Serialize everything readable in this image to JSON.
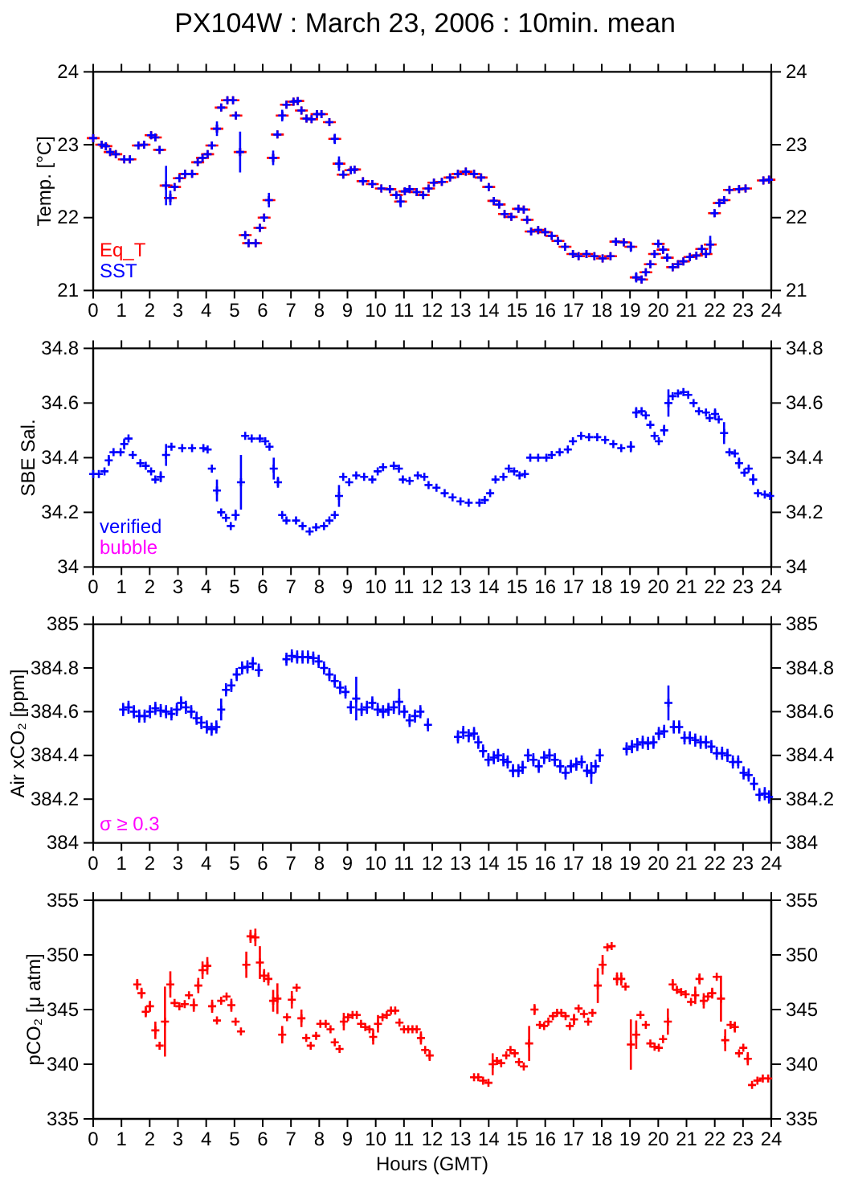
{
  "chart_data": [
    {
      "type": "scatter",
      "title": "PX104W : March 23, 2006 : 10min. mean",
      "ylabel": "Temp. [°C]",
      "marker": "cross",
      "legend": "bottom left",
      "xlim": [
        0,
        24
      ],
      "xticks": [
        0,
        1,
        2,
        3,
        4,
        5,
        6,
        7,
        8,
        9,
        10,
        11,
        12,
        13,
        14,
        15,
        16,
        17,
        18,
        19,
        20,
        21,
        22,
        23,
        24
      ],
      "ylim": [
        21,
        24
      ],
      "yticks": [
        21,
        22,
        23,
        24
      ],
      "y2lim": [
        21,
        24
      ],
      "y2ticks": [
        21,
        22,
        23,
        24
      ],
      "series": [
        {
          "name": "Eq_T",
          "color": "#ff0000",
          "x": [
            0,
            0.3,
            0.45,
            0.6,
            0.8,
            1.1,
            1.3,
            1.6,
            1.8,
            2.05,
            2.2,
            2.35,
            2.58,
            2.73,
            2.88,
            3.05,
            3.25,
            3.5,
            3.7,
            3.87,
            4.05,
            4.2,
            4.38,
            4.53,
            4.75,
            4.95,
            5.05,
            5.2,
            5.38,
            5.5,
            5.75,
            5.9,
            6.05,
            6.22,
            6.37,
            6.52,
            6.69,
            6.84,
            7.09,
            7.24,
            7.37,
            7.55,
            7.73,
            7.92,
            8.08,
            8.36,
            8.55,
            8.7,
            8.85,
            9.12,
            9.25,
            9.55,
            9.88,
            10.2,
            10.5,
            10.73,
            10.88,
            11.03,
            11.2,
            11.45,
            11.68,
            11.87,
            12.06,
            12.34,
            12.63,
            12.91,
            13.19,
            13.48,
            13.73,
            14.0,
            14.18,
            14.37,
            14.56,
            14.8,
            15.05,
            15.24,
            15.36,
            15.5,
            15.75,
            16.0,
            16.23,
            16.45,
            16.7,
            16.98,
            17.18,
            17.46,
            17.74,
            18.03,
            18.31,
            18.5,
            18.78,
            19.03,
            19.22,
            19.41,
            19.56,
            19.72,
            19.87,
            20.0,
            20.17,
            20.32,
            20.51,
            20.7,
            20.89,
            21.12,
            21.35,
            21.54,
            21.69,
            21.84,
            21.99,
            22.16,
            22.33,
            22.52,
            22.86,
            23.09,
            23.72,
            23.92
          ],
          "values": [
            23.09,
            23.0,
            22.98,
            22.9,
            22.87,
            22.8,
            22.8,
            22.99,
            23.0,
            23.13,
            23.1,
            22.93,
            22.44,
            22.27,
            22.42,
            22.54,
            22.6,
            22.6,
            22.76,
            22.82,
            22.87,
            22.99,
            23.22,
            23.51,
            23.61,
            23.61,
            23.4,
            22.9,
            21.76,
            21.65,
            21.65,
            21.86,
            22.0,
            22.24,
            22.82,
            23.14,
            23.4,
            23.55,
            23.59,
            23.6,
            23.47,
            23.36,
            23.35,
            23.42,
            23.42,
            23.31,
            23.08,
            22.74,
            22.59,
            22.65,
            22.66,
            22.5,
            22.46,
            22.4,
            22.39,
            22.31,
            22.22,
            22.36,
            22.39,
            22.35,
            22.31,
            22.4,
            22.48,
            22.49,
            22.55,
            22.6,
            22.63,
            22.6,
            22.55,
            22.42,
            22.23,
            22.18,
            22.05,
            22.01,
            22.12,
            22.11,
            21.97,
            21.81,
            21.83,
            21.8,
            21.75,
            21.68,
            21.6,
            21.5,
            21.47,
            21.5,
            21.47,
            21.44,
            21.47,
            21.67,
            21.66,
            21.6,
            21.18,
            21.15,
            21.25,
            21.36,
            21.5,
            21.64,
            21.56,
            21.45,
            21.32,
            21.36,
            21.4,
            21.46,
            21.48,
            21.57,
            21.5,
            21.63,
            22.06,
            22.2,
            22.24,
            22.38,
            22.39,
            22.4,
            22.51,
            22.52
          ]
        },
        {
          "name": "SST",
          "color": "#0000ff",
          "x": [
            0,
            0.3,
            0.45,
            0.6,
            0.8,
            1.1,
            1.3,
            1.6,
            1.8,
            2.05,
            2.2,
            2.35,
            2.58,
            2.73,
            2.88,
            3.05,
            3.25,
            3.5,
            3.7,
            3.87,
            4.05,
            4.2,
            4.38,
            4.53,
            4.75,
            4.95,
            5.05,
            5.2,
            5.38,
            5.5,
            5.75,
            5.9,
            6.05,
            6.22,
            6.37,
            6.52,
            6.69,
            6.84,
            7.09,
            7.24,
            7.37,
            7.55,
            7.73,
            7.92,
            8.08,
            8.36,
            8.55,
            8.7,
            8.85,
            9.12,
            9.25,
            9.55,
            9.88,
            10.2,
            10.5,
            10.73,
            10.88,
            11.03,
            11.2,
            11.45,
            11.68,
            11.87,
            12.06,
            12.34,
            12.63,
            12.91,
            13.19,
            13.48,
            13.73,
            14.0,
            14.18,
            14.37,
            14.56,
            14.8,
            15.05,
            15.24,
            15.36,
            15.5,
            15.75,
            16.0,
            16.23,
            16.45,
            16.7,
            16.98,
            17.18,
            17.46,
            17.74,
            18.03,
            18.31,
            18.5,
            18.78,
            19.03,
            19.22,
            19.41,
            19.56,
            19.72,
            19.87,
            20.0,
            20.17,
            20.32,
            20.51,
            20.7,
            20.89,
            21.12,
            21.35,
            21.54,
            21.69,
            21.84,
            21.99,
            22.16,
            22.33,
            22.52,
            22.86,
            23.09,
            23.72,
            23.92
          ],
          "values": [
            23.09,
            23.0,
            22.98,
            22.9,
            22.87,
            22.8,
            22.8,
            22.99,
            23.0,
            23.13,
            23.1,
            22.93,
            22.44,
            22.27,
            22.42,
            22.54,
            22.6,
            22.6,
            22.76,
            22.82,
            22.87,
            22.99,
            23.22,
            23.51,
            23.61,
            23.61,
            23.4,
            22.9,
            21.76,
            21.65,
            21.65,
            21.86,
            22.0,
            22.24,
            22.82,
            23.14,
            23.4,
            23.55,
            23.59,
            23.6,
            23.47,
            23.36,
            23.35,
            23.42,
            23.42,
            23.31,
            23.08,
            22.74,
            22.59,
            22.65,
            22.66,
            22.5,
            22.46,
            22.4,
            22.39,
            22.31,
            22.22,
            22.36,
            22.39,
            22.35,
            22.31,
            22.4,
            22.48,
            22.49,
            22.55,
            22.6,
            22.63,
            22.6,
            22.55,
            22.42,
            22.23,
            22.18,
            22.05,
            22.01,
            22.12,
            22.11,
            21.97,
            21.81,
            21.83,
            21.8,
            21.75,
            21.68,
            21.6,
            21.5,
            21.47,
            21.5,
            21.47,
            21.44,
            21.47,
            21.67,
            21.66,
            21.6,
            21.18,
            21.15,
            21.25,
            21.36,
            21.5,
            21.64,
            21.56,
            21.45,
            21.32,
            21.36,
            21.4,
            21.46,
            21.48,
            21.57,
            21.5,
            21.63,
            22.06,
            22.2,
            22.24,
            22.38,
            22.39,
            22.4,
            22.51,
            22.52
          ],
          "errors": [
            null,
            null,
            null,
            null,
            null,
            null,
            null,
            null,
            null,
            null,
            null,
            null,
            0.27,
            0.1,
            null,
            null,
            null,
            null,
            null,
            null,
            null,
            null,
            0.1,
            null,
            null,
            null,
            null,
            0.28,
            null,
            null,
            null,
            null,
            null,
            0.1,
            0.1,
            null,
            0.08,
            null,
            null,
            null,
            null,
            null,
            null,
            null,
            null,
            null,
            0.07,
            0.1,
            null,
            null,
            null,
            null,
            null,
            null,
            null,
            null,
            0.08,
            null,
            null,
            null,
            null,
            null,
            null,
            null,
            null,
            null,
            null,
            null,
            null,
            null,
            null,
            null,
            null,
            null,
            null,
            null,
            null,
            null,
            null,
            null,
            null,
            null,
            null,
            null,
            null,
            null,
            null,
            null,
            null,
            null,
            null,
            0.07,
            0.07,
            null,
            null,
            null,
            null,
            null,
            null,
            0.05,
            null,
            null,
            null,
            null,
            null,
            null,
            null,
            0.12,
            0.05,
            null,
            null,
            null,
            null,
            null,
            null,
            null
          ]
        }
      ]
    },
    {
      "type": "scatter",
      "ylabel": "SBE Sal.",
      "marker": "cross",
      "legend": "bottom left",
      "annotations": [
        "bubble"
      ],
      "xlim": [
        0,
        24
      ],
      "xticks": [
        0,
        1,
        2,
        3,
        4,
        5,
        6,
        7,
        8,
        9,
        10,
        11,
        12,
        13,
        14,
        15,
        16,
        17,
        18,
        19,
        20,
        21,
        22,
        23,
        24
      ],
      "ylim": [
        34,
        34.8
      ],
      "yticks": [
        34,
        34.2,
        34.4,
        34.6,
        34.8
      ],
      "y2lim": [
        34,
        34.8
      ],
      "y2ticks": [
        34,
        34.2,
        34.4,
        34.6,
        34.8
      ],
      "series": [
        {
          "name": "verified",
          "color": "#0000ff",
          "x": [
            0,
            0.2,
            0.4,
            0.55,
            0.72,
            0.97,
            1.1,
            1.25,
            1.4,
            1.67,
            1.86,
            2.05,
            2.2,
            2.39,
            2.58,
            2.77,
            3.15,
            3.5,
            3.9,
            4.05,
            4.2,
            4.38,
            4.53,
            4.7,
            4.87,
            5.04,
            5.23,
            5.38,
            5.61,
            5.9,
            6.09,
            6.24,
            6.39,
            6.54,
            6.69,
            6.84,
            7.18,
            7.41,
            7.66,
            7.89,
            8.17,
            8.36,
            8.55,
            8.7,
            8.85,
            9.06,
            9.31,
            9.59,
            9.88,
            10.07,
            10.26,
            10.64,
            10.82,
            10.96,
            11.2,
            11.49,
            11.72,
            11.87,
            12.15,
            12.44,
            12.72,
            13.0,
            13.29,
            13.67,
            13.86,
            14.05,
            14.24,
            14.52,
            14.71,
            14.9,
            15.09,
            15.28,
            15.47,
            15.75,
            16.04,
            16.23,
            16.51,
            16.8,
            16.98,
            17.27,
            17.55,
            17.84,
            18.12,
            18.41,
            18.69,
            19.03,
            19.22,
            19.41,
            19.56,
            19.72,
            19.87,
            20.02,
            20.21,
            20.36,
            20.51,
            20.7,
            20.89,
            21.06,
            21.25,
            21.44,
            21.69,
            21.82,
            22.01,
            22.14,
            22.33,
            22.52,
            22.71,
            22.86,
            23.05,
            23.2,
            23.36,
            23.53,
            23.77,
            23.96
          ],
          "values": [
            34.34,
            34.34,
            34.35,
            34.39,
            34.42,
            34.42,
            34.45,
            34.47,
            34.41,
            34.38,
            34.37,
            34.35,
            34.32,
            34.33,
            34.41,
            34.44,
            34.435,
            34.435,
            34.435,
            34.43,
            34.36,
            34.28,
            34.2,
            34.18,
            34.15,
            34.19,
            34.31,
            34.48,
            34.47,
            34.47,
            34.46,
            34.44,
            34.36,
            34.31,
            34.19,
            34.17,
            34.17,
            34.15,
            34.13,
            34.145,
            34.15,
            34.17,
            34.19,
            34.26,
            34.33,
            34.31,
            34.335,
            34.33,
            34.32,
            34.35,
            34.365,
            34.37,
            34.36,
            34.32,
            34.315,
            34.335,
            34.33,
            34.3,
            34.29,
            34.27,
            34.255,
            34.24,
            34.235,
            34.235,
            34.245,
            34.27,
            34.32,
            34.33,
            34.36,
            34.35,
            34.335,
            34.34,
            34.4,
            34.4,
            34.4,
            34.41,
            34.42,
            34.43,
            34.46,
            34.48,
            34.475,
            34.475,
            34.465,
            34.45,
            34.435,
            34.44,
            34.565,
            34.57,
            34.555,
            34.52,
            34.48,
            34.46,
            34.5,
            34.6,
            34.625,
            34.635,
            34.64,
            34.63,
            34.6,
            34.57,
            34.565,
            34.545,
            34.56,
            34.54,
            34.49,
            34.42,
            34.415,
            34.38,
            34.345,
            34.36,
            34.32,
            34.27,
            34.265,
            34.26
          ],
          "errors": [
            null,
            null,
            null,
            0.02,
            null,
            null,
            0.02,
            null,
            null,
            null,
            null,
            null,
            null,
            0.02,
            0.04,
            null,
            null,
            null,
            null,
            null,
            null,
            0.04,
            null,
            null,
            null,
            0.02,
            0.1,
            null,
            null,
            null,
            null,
            null,
            0.04,
            0.02,
            null,
            null,
            null,
            null,
            null,
            null,
            null,
            null,
            null,
            0.04,
            null,
            null,
            null,
            null,
            null,
            null,
            null,
            null,
            null,
            null,
            null,
            null,
            null,
            null,
            null,
            null,
            null,
            null,
            null,
            null,
            null,
            null,
            null,
            null,
            null,
            null,
            null,
            null,
            null,
            null,
            null,
            null,
            null,
            null,
            null,
            null,
            null,
            null,
            null,
            null,
            null,
            0.02,
            0.02,
            null,
            null,
            null,
            null,
            null,
            0.02,
            0.05,
            null,
            null,
            null,
            null,
            null,
            null,
            null,
            null,
            0.02,
            null,
            0.04,
            null,
            null,
            0.02,
            null,
            null,
            0.02,
            null,
            null,
            null
          ]
        }
      ]
    },
    {
      "type": "scatter",
      "ylabel": "Air xCO₂ [ppm]",
      "marker": "cross",
      "annotations": [
        "σ ≥ 0.3"
      ],
      "xlim": [
        0,
        24
      ],
      "xticks": [
        0,
        1,
        2,
        3,
        4,
        5,
        6,
        7,
        8,
        9,
        10,
        11,
        12,
        13,
        14,
        15,
        16,
        17,
        18,
        19,
        20,
        21,
        22,
        23,
        24
      ],
      "ylim": [
        384,
        385
      ],
      "yticks": [
        384,
        384.2,
        384.4,
        384.6,
        384.8,
        385
      ],
      "y2lim": [
        384,
        385
      ],
      "y2ticks": [
        384,
        384.2,
        384.4,
        384.6,
        384.8,
        385
      ],
      "series": [
        {
          "color": "#0000ff",
          "x": [
            1.06,
            1.25,
            1.44,
            1.63,
            1.82,
            2.01,
            2.2,
            2.39,
            2.58,
            2.77,
            2.96,
            3.11,
            3.28,
            3.47,
            3.66,
            3.83,
            4.02,
            4.19,
            4.36,
            4.53,
            4.7,
            4.89,
            5.08,
            5.27,
            5.46,
            5.65,
            5.86,
            6.84,
            7.03,
            7.22,
            7.41,
            7.6,
            7.79,
            7.98,
            8.17,
            8.36,
            8.55,
            8.74,
            8.93,
            9.12,
            9.31,
            9.5,
            9.69,
            9.88,
            10.07,
            10.26,
            10.45,
            10.64,
            10.83,
            11.01,
            11.2,
            11.39,
            11.58,
            11.85,
            12.91,
            13.1,
            13.29,
            13.48,
            13.63,
            13.8,
            13.99,
            14.18,
            14.33,
            14.52,
            14.67,
            14.86,
            15.05,
            15.2,
            15.39,
            15.58,
            15.77,
            15.96,
            16.15,
            16.34,
            16.53,
            16.72,
            16.91,
            17.1,
            17.29,
            17.48,
            17.63,
            17.78,
            17.93,
            18.88,
            19.07,
            19.26,
            19.45,
            19.64,
            19.83,
            20.02,
            20.21,
            20.36,
            20.55,
            20.74,
            20.93,
            21.12,
            21.31,
            21.5,
            21.69,
            21.88,
            22.07,
            22.26,
            22.45,
            22.64,
            22.83,
            23.02,
            23.2,
            23.39,
            23.58,
            23.77,
            23.92
          ],
          "values": [
            384.61,
            384.62,
            384.6,
            384.58,
            384.58,
            384.6,
            384.615,
            384.605,
            384.6,
            384.59,
            384.61,
            384.64,
            384.62,
            384.6,
            384.57,
            384.55,
            384.53,
            384.52,
            384.53,
            384.61,
            384.7,
            384.72,
            384.77,
            384.8,
            384.805,
            384.82,
            384.79,
            384.84,
            384.855,
            384.85,
            384.85,
            384.85,
            384.845,
            384.83,
            384.8,
            384.77,
            384.74,
            384.71,
            384.69,
            384.62,
            384.66,
            384.61,
            384.62,
            384.64,
            384.61,
            384.6,
            384.61,
            384.62,
            384.645,
            384.6,
            384.56,
            384.58,
            384.6,
            384.54,
            384.485,
            384.505,
            384.49,
            384.5,
            384.46,
            384.42,
            384.38,
            384.39,
            384.4,
            384.38,
            384.37,
            384.33,
            384.33,
            384.345,
            384.4,
            384.38,
            384.35,
            384.39,
            384.4,
            384.38,
            384.35,
            384.32,
            384.35,
            384.36,
            384.37,
            384.33,
            384.32,
            384.35,
            384.4,
            384.43,
            384.44,
            384.45,
            384.46,
            384.455,
            384.46,
            384.5,
            384.51,
            384.64,
            384.53,
            384.53,
            384.48,
            384.48,
            384.47,
            384.46,
            384.46,
            384.44,
            384.41,
            384.41,
            384.4,
            384.37,
            384.37,
            384.32,
            384.31,
            384.27,
            384.22,
            384.225,
            384.21
          ],
          "errors": [
            0.03,
            0.03,
            0.03,
            0.03,
            0.03,
            0.03,
            0.03,
            0.03,
            0.03,
            0.03,
            0.03,
            0.03,
            0.03,
            0.03,
            0.03,
            0.03,
            0.03,
            0.03,
            0.03,
            0.05,
            0.03,
            0.03,
            0.03,
            0.03,
            0.03,
            0.03,
            0.03,
            0.03,
            0.03,
            0.03,
            0.03,
            0.03,
            0.03,
            0.03,
            0.03,
            0.03,
            0.03,
            0.03,
            0.03,
            0.03,
            0.1,
            0.03,
            0.03,
            0.03,
            0.03,
            0.03,
            0.03,
            0.03,
            0.06,
            0.03,
            0.03,
            0.03,
            0.03,
            0.03,
            0.03,
            0.03,
            0.03,
            0.03,
            0.03,
            0.03,
            0.03,
            0.03,
            0.03,
            0.03,
            0.03,
            0.03,
            0.03,
            0.03,
            0.03,
            0.03,
            0.03,
            0.03,
            0.03,
            0.03,
            0.03,
            0.03,
            0.03,
            0.03,
            0.03,
            0.03,
            0.05,
            0.03,
            0.03,
            0.03,
            0.03,
            0.03,
            0.03,
            0.03,
            0.03,
            0.03,
            0.03,
            0.08,
            0.03,
            0.03,
            0.03,
            0.03,
            0.03,
            0.03,
            0.03,
            0.03,
            0.03,
            0.03,
            0.03,
            0.03,
            0.03,
            0.03,
            0.03,
            0.03,
            0.03,
            0.03,
            0.03
          ]
        }
      ]
    },
    {
      "type": "scatter",
      "ylabel": "pCO₂ [μ atm]",
      "xlabel": "Hours (GMT)",
      "marker": "cross",
      "xlim": [
        0,
        24
      ],
      "xticks": [
        0,
        1,
        2,
        3,
        4,
        5,
        6,
        7,
        8,
        9,
        10,
        11,
        12,
        13,
        14,
        15,
        16,
        17,
        18,
        19,
        20,
        21,
        22,
        23,
        24
      ],
      "ylim": [
        335,
        355
      ],
      "yticks": [
        335,
        340,
        345,
        350,
        355
      ],
      "y2lim": [
        335,
        355
      ],
      "y2ticks": [
        335,
        340,
        345,
        350,
        355
      ],
      "series": [
        {
          "color": "#ff0000",
          "x": [
            1.56,
            1.71,
            1.86,
            2.01,
            2.2,
            2.35,
            2.54,
            2.73,
            2.88,
            3.05,
            3.24,
            3.39,
            3.56,
            3.72,
            3.87,
            4.04,
            4.21,
            4.38,
            4.53,
            4.72,
            4.89,
            5.04,
            5.23,
            5.42,
            5.57,
            5.74,
            5.9,
            6.05,
            6.2,
            6.37,
            6.52,
            6.69,
            6.86,
            7.03,
            7.2,
            7.37,
            7.54,
            7.7,
            7.89,
            8.04,
            8.23,
            8.4,
            8.55,
            8.72,
            8.87,
            9.02,
            9.18,
            9.33,
            9.48,
            9.63,
            9.78,
            9.91,
            10.08,
            10.24,
            10.39,
            10.54,
            10.69,
            10.84,
            11.0,
            11.15,
            11.3,
            11.45,
            11.6,
            11.75,
            11.91,
            13.48,
            13.63,
            13.8,
            13.99,
            14.14,
            14.29,
            14.44,
            14.62,
            14.77,
            14.92,
            15.07,
            15.24,
            15.43,
            15.62,
            15.81,
            15.96,
            16.11,
            16.27,
            16.42,
            16.57,
            16.72,
            16.87,
            17.02,
            17.18,
            17.37,
            17.52,
            17.67,
            17.86,
            18.03,
            18.2,
            18.35,
            18.54,
            18.69,
            18.84,
            19.03,
            19.22,
            19.37,
            19.56,
            19.72,
            19.87,
            20.02,
            20.17,
            20.34,
            20.51,
            20.66,
            20.81,
            20.97,
            21.16,
            21.31,
            21.46,
            21.61,
            21.76,
            21.91,
            22.07,
            22.22,
            22.37,
            22.56,
            22.71,
            22.86,
            23.01,
            23.17,
            23.32,
            23.51,
            23.7,
            23.89
          ],
          "values": [
            347.3,
            346.5,
            344.8,
            345.3,
            343.1,
            341.7,
            343.9,
            347.3,
            345.6,
            345.3,
            345.5,
            346.3,
            345.4,
            347.2,
            348.6,
            349.0,
            345.3,
            344.0,
            345.8,
            346.2,
            345.4,
            343.9,
            343.0,
            349.1,
            351.7,
            351.6,
            349.3,
            348.1,
            347.8,
            345.8,
            346.0,
            342.7,
            344.3,
            345.9,
            347.0,
            344.2,
            342.4,
            341.7,
            342.6,
            343.7,
            343.7,
            343.2,
            342.0,
            341.4,
            343.9,
            344.3,
            344.5,
            344.5,
            343.7,
            343.4,
            343.2,
            342.5,
            343.7,
            344.3,
            344.5,
            344.9,
            344.9,
            343.8,
            343.2,
            343.2,
            343.2,
            343.2,
            342.4,
            341.3,
            340.8,
            338.8,
            338.8,
            338.5,
            338.3,
            340.0,
            340.3,
            340.1,
            340.8,
            341.3,
            341.0,
            340.2,
            339.8,
            341.9,
            345.0,
            343.6,
            343.5,
            343.9,
            344.4,
            344.7,
            344.7,
            344.4,
            343.5,
            344.1,
            345.1,
            344.6,
            343.9,
            344.7,
            347.2,
            349.1,
            350.7,
            350.8,
            347.8,
            347.8,
            347.1,
            341.8,
            342.7,
            344.5,
            343.6,
            341.9,
            341.6,
            341.5,
            342.3,
            343.9,
            347.3,
            346.8,
            346.6,
            346.4,
            345.7,
            346.3,
            347.8,
            345.8,
            346.2,
            346.5,
            348.0,
            346.0,
            342.2,
            343.6,
            343.4,
            341.0,
            341.5,
            340.5,
            338.1,
            338.5,
            338.7,
            338.7
          ],
          "errors": [
            0.5,
            0.5,
            0.5,
            0.5,
            0.8,
            null,
            3.2,
            1.2,
            null,
            null,
            null,
            null,
            0.6,
            0.7,
            0.8,
            0.8,
            0.6,
            null,
            null,
            null,
            0.6,
            null,
            null,
            1.2,
            0.6,
            0.8,
            1.5,
            0.6,
            0.6,
            1.0,
            1.4,
            0.8,
            null,
            0.8,
            null,
            0.8,
            null,
            null,
            null,
            null,
            null,
            null,
            null,
            null,
            0.8,
            null,
            null,
            null,
            null,
            null,
            null,
            0.7,
            0.8,
            null,
            null,
            null,
            null,
            null,
            null,
            null,
            null,
            null,
            0.6,
            null,
            0.5,
            null,
            null,
            null,
            null,
            1.0,
            null,
            null,
            null,
            null,
            null,
            null,
            null,
            1.6,
            0.5,
            null,
            null,
            null,
            null,
            null,
            null,
            null,
            null,
            0.5,
            null,
            null,
            null,
            null,
            1.6,
            0.9,
            null,
            null,
            0.6,
            0.6,
            null,
            2.3,
            1.3,
            null,
            null,
            null,
            null,
            null,
            null,
            1.2,
            0.5,
            null,
            null,
            null,
            null,
            0.8,
            0.5,
            0.7,
            null,
            0.5,
            null,
            2.1,
            1.0,
            null,
            0.5,
            null,
            null,
            0.6,
            null,
            null,
            null,
            null
          ]
        }
      ]
    }
  ]
}
